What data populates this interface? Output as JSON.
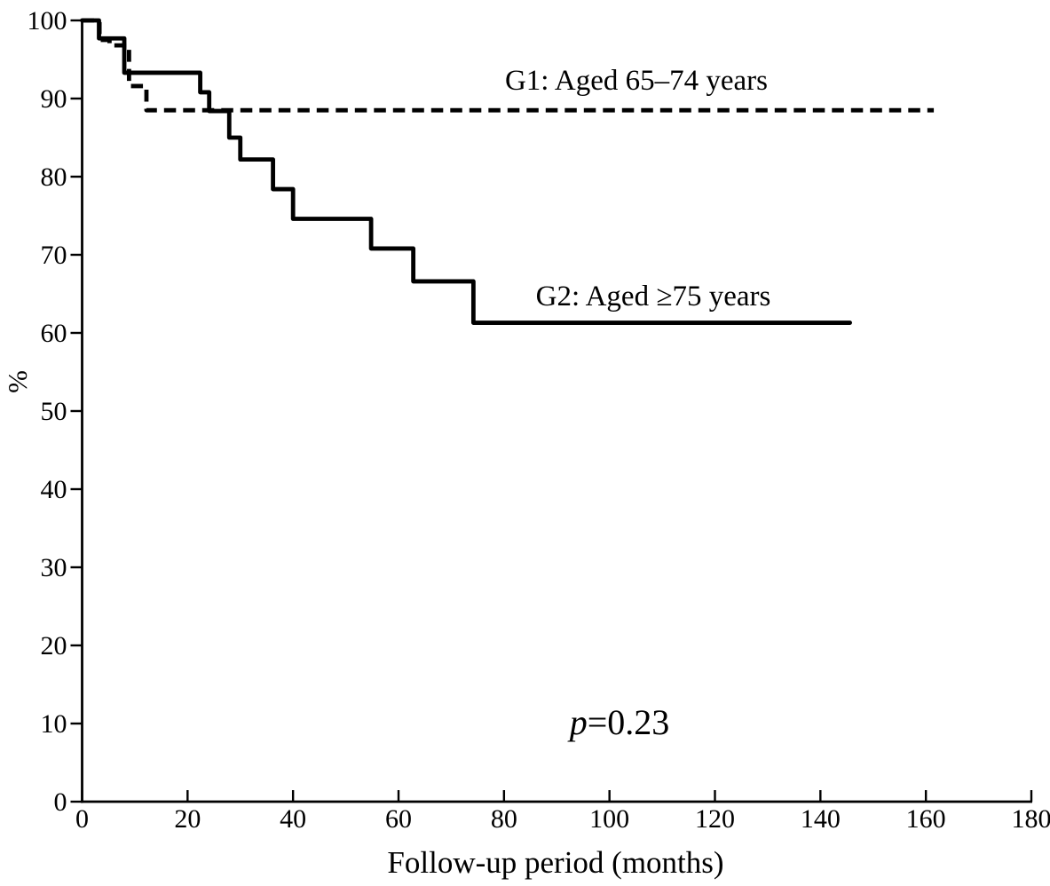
{
  "figure": {
    "background": "#ffffff",
    "ink_color": "#000000"
  },
  "chart_data": {
    "type": "line",
    "subtype": "kaplan_meier_step",
    "title": "",
    "xlabel": "Follow-up period (months)",
    "ylabel": "%",
    "xlim": [
      0,
      180
    ],
    "ylim": [
      0,
      100
    ],
    "x_ticks": [
      0,
      20,
      40,
      60,
      80,
      100,
      120,
      140,
      160,
      180
    ],
    "y_ticks": [
      0,
      10,
      20,
      30,
      40,
      50,
      60,
      70,
      80,
      90,
      100
    ],
    "grid": false,
    "legend_position": "inline-labels-near-curves",
    "annotations": [
      {
        "text": "p=0.23",
        "p_symbol": "p",
        "p_rest": "=0.23"
      }
    ],
    "series": [
      {
        "name": "G1: Aged 65–74 years",
        "group": "G1",
        "line_style": "dashed",
        "color": "#000000",
        "steps": [
          [
            0,
            100
          ],
          [
            3.3,
            97.5
          ],
          [
            5.2,
            96.8
          ],
          [
            8.9,
            91.6
          ],
          [
            12.2,
            88.5
          ]
        ],
        "end_month": 161.5,
        "final_value": 88.5
      },
      {
        "name": "G2: Aged ≥75 years",
        "group": "G2",
        "line_style": "solid",
        "color": "#000000",
        "steps": [
          [
            0,
            100
          ],
          [
            3.2,
            97.7
          ],
          [
            8,
            93.3
          ],
          [
            22.4,
            90.8
          ],
          [
            24.1,
            88.4
          ],
          [
            27.9,
            85
          ],
          [
            30,
            82.2
          ],
          [
            36.2,
            78.4
          ],
          [
            40,
            74.6
          ],
          [
            54.8,
            70.8
          ],
          [
            62.8,
            66.6
          ],
          [
            74.2,
            61.3
          ]
        ],
        "end_month": 145.6,
        "final_value": 61.3
      }
    ]
  }
}
